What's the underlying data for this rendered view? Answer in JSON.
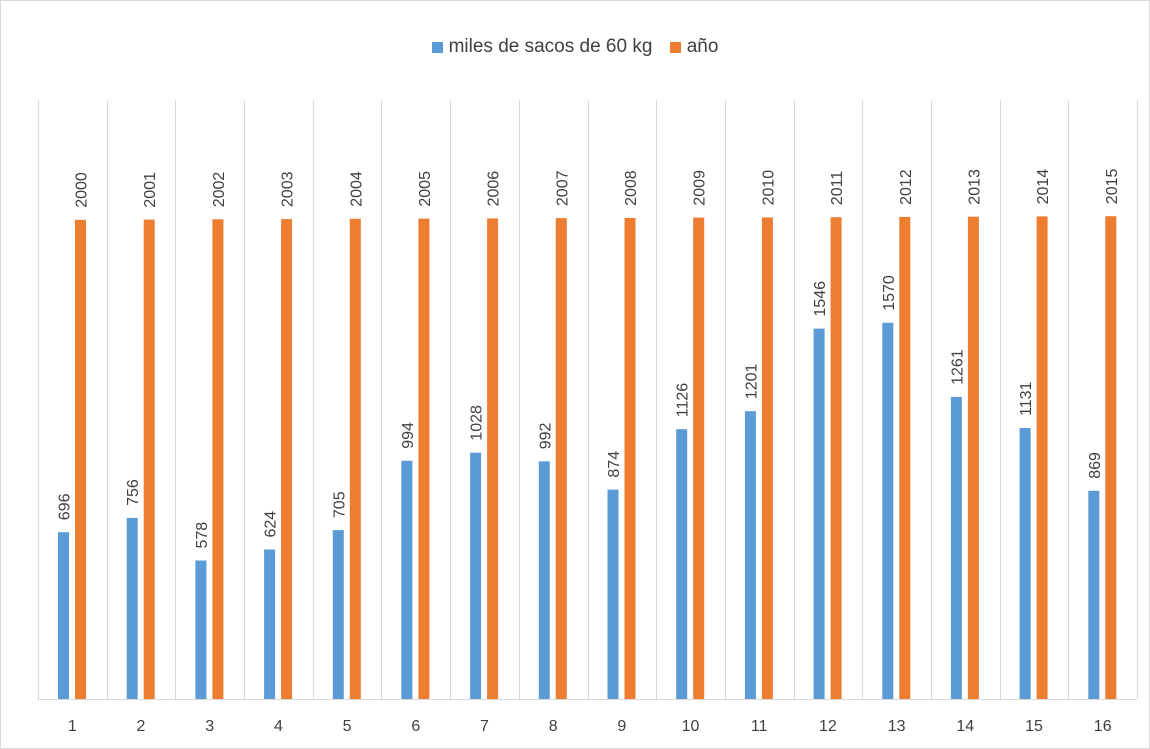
{
  "chart_data": {
    "type": "bar",
    "categories": [
      "1",
      "2",
      "3",
      "4",
      "5",
      "6",
      "7",
      "8",
      "9",
      "10",
      "11",
      "12",
      "13",
      "14",
      "15",
      "16"
    ],
    "series": [
      {
        "name": "miles de sacos de 60 kg",
        "color": "#5b9bd5",
        "values": [
          696,
          756,
          578,
          624,
          705,
          994,
          1028,
          992,
          874,
          1126,
          1201,
          1546,
          1570,
          1261,
          1131,
          869
        ]
      },
      {
        "name": "año",
        "color": "#ed7d31",
        "values": [
          2000,
          2001,
          2002,
          2003,
          2004,
          2005,
          2006,
          2007,
          2008,
          2009,
          2010,
          2011,
          2012,
          2013,
          2014,
          2015
        ]
      }
    ],
    "title": "",
    "xlabel": "",
    "ylabel": "",
    "ylim": [
      0,
      2500
    ],
    "grid": "vertical category separators",
    "legend_position": "top"
  }
}
